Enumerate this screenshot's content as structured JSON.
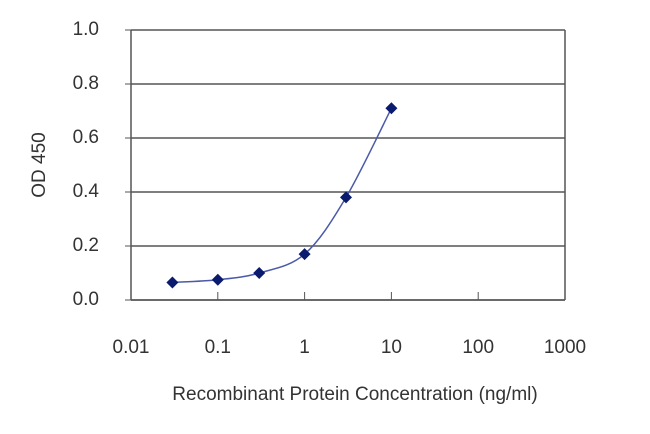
{
  "chart_data": {
    "type": "scatter",
    "x_label": "Recombinant Protein Concentration  (ng/ml)",
    "y_label": "OD 450",
    "x": [
      0.03,
      0.1,
      0.3,
      1,
      3,
      10
    ],
    "values": [
      0.065,
      0.075,
      0.1,
      0.17,
      0.38,
      0.71
    ],
    "color": "#0a1a6e",
    "line_color": "#4a5aa8",
    "xlog": true,
    "xlim": [
      0.01,
      1000
    ],
    "xticks": [
      0.01,
      0.1,
      1,
      10,
      100,
      1000
    ],
    "ylim": [
      0,
      1
    ],
    "yticks": [
      {
        "value": 0,
        "label": "0.0"
      },
      0.2,
      0.4,
      0.6,
      0.8,
      {
        "value": 1,
        "label": "1.0"
      }
    ],
    "grid": true
  }
}
